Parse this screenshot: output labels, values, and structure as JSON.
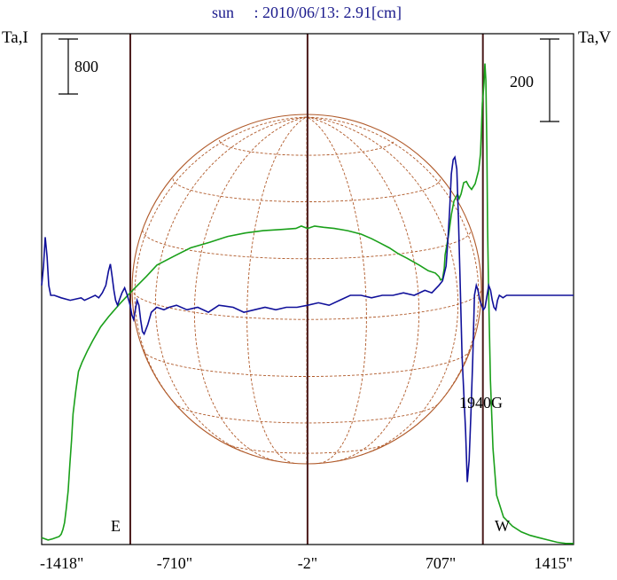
{
  "title": "sun     : 2010/06/13: 2.91[cm]",
  "colors": {
    "title": "#1a1a8c",
    "frame": "#000000",
    "intensity": "#1aa01a",
    "polarization": "#10109a",
    "disk": "#b05a2a",
    "guide": "#4a1a1a"
  },
  "chart_data": {
    "type": "line",
    "title": "sun     : 2010/06/13: 2.91[cm]",
    "left_axis_label": "Ta,I",
    "right_axis_label": "Ta,V",
    "left_scale_bar_label": "800",
    "right_scale_bar_label": "200",
    "left_scale_bar": 800,
    "right_scale_bar": 200,
    "xlim": [
      -1418,
      1415
    ],
    "x_tick_labels": [
      "-1418\"",
      "-710\"",
      "-2\"",
      "707\"",
      "1415\""
    ],
    "x_ticks": [
      -1418,
      -710,
      -2,
      707,
      1415
    ],
    "vertical_markers": [
      -946,
      -2,
      932
    ],
    "labels": {
      "east": "E",
      "west": "W",
      "peak": "1940G"
    },
    "peak_value_G": 1940,
    "series": [
      {
        "key": "intensity",
        "x": [
          -1418,
          -1384,
          -1360,
          -1325,
          -1314,
          -1305,
          -1296,
          -1287,
          -1277,
          -1268,
          -1259,
          -1251,
          -1236,
          -1222,
          -1203,
          -1175,
          -1146,
          -1104,
          -1061,
          -1003,
          -946,
          -861,
          -804,
          -710,
          -625,
          -522,
          -427,
          -333,
          -238,
          -144,
          -64,
          -35,
          -2,
          36,
          84,
          141,
          212,
          283,
          340,
          387,
          434,
          480,
          527,
          593,
          641,
          679,
          698,
          707,
          717,
          726,
          731,
          750,
          764,
          778,
          797,
          806,
          816,
          830,
          844,
          857,
          872,
          891,
          910,
          919,
          924,
          929,
          938,
          943,
          948,
          953,
          957,
          962,
          972,
          986,
          1005,
          1042,
          1090,
          1137,
          1184,
          1231,
          1279,
          1326,
          1373,
          1415
        ],
        "y": [
          -17,
          -50,
          -33,
          0,
          33,
          100,
          200,
          400,
          667,
          1050,
          1400,
          1783,
          2117,
          2400,
          2533,
          2700,
          2850,
          3050,
          3200,
          3383,
          3550,
          3783,
          3950,
          4083,
          4200,
          4283,
          4367,
          4417,
          4450,
          4467,
          4483,
          4517,
          4483,
          4517,
          4500,
          4483,
          4450,
          4400,
          4333,
          4267,
          4200,
          4117,
          4050,
          3950,
          3867,
          3833,
          3783,
          3733,
          3750,
          3900,
          4100,
          4400,
          4683,
          4883,
          4983,
          4917,
          4983,
          5150,
          5167,
          5100,
          5050,
          5133,
          5333,
          5567,
          5900,
          6300,
          6600,
          6883,
          6633,
          5667,
          4500,
          3617,
          2283,
          1283,
          600,
          283,
          150,
          67,
          17,
          -17,
          -50,
          -83,
          -100,
          -100
        ]
      },
      {
        "key": "polarization",
        "x": [
          -1418,
          -1408,
          -1399,
          -1389,
          -1380,
          -1370,
          -1351,
          -1314,
          -1266,
          -1208,
          -1190,
          -1161,
          -1133,
          -1114,
          -1095,
          -1076,
          -1062,
          -1052,
          -1043,
          -1033,
          -1024,
          -1014,
          -1005,
          -990,
          -976,
          -962,
          -947,
          -938,
          -928,
          -919,
          -910,
          -900,
          -891,
          -881,
          -872,
          -853,
          -834,
          -805,
          -767,
          -739,
          -700,
          -644,
          -587,
          -530,
          -474,
          -398,
          -341,
          -285,
          -228,
          -171,
          -115,
          -58,
          -1,
          56,
          113,
          169,
          226,
          283,
          339,
          396,
          453,
          509,
          566,
          623,
          660,
          698,
          717,
          736,
          745,
          755,
          764,
          774,
          783,
          793,
          802,
          812,
          821,
          840,
          849,
          859,
          868,
          878,
          887,
          897,
          906,
          916,
          925,
          935,
          944,
          954,
          963,
          973,
          982,
          991,
          1001,
          1010,
          1020,
          1039,
          1058,
          1077,
          1105,
          1143,
          1190,
          1246,
          1303,
          1360,
          1415
        ],
        "y": [
          24,
          71,
          141,
          94,
          24,
          0,
          0,
          -6,
          -12,
          -6,
          -12,
          -6,
          0,
          -6,
          6,
          24,
          59,
          76,
          47,
          12,
          -12,
          -24,
          -12,
          6,
          18,
          0,
          -24,
          -47,
          -59,
          -35,
          -12,
          -24,
          -59,
          -88,
          -94,
          -71,
          -41,
          -29,
          -35,
          -29,
          -24,
          -35,
          -29,
          -41,
          -24,
          -29,
          -41,
          -35,
          -29,
          -35,
          -29,
          -29,
          -24,
          -18,
          -24,
          -12,
          0,
          0,
          -6,
          0,
          0,
          6,
          0,
          12,
          6,
          24,
          35,
          71,
          129,
          206,
          294,
          329,
          335,
          306,
          182,
          12,
          -147,
          -329,
          -453,
          -400,
          -288,
          -153,
          0,
          24,
          12,
          -12,
          -24,
          -35,
          -29,
          0,
          24,
          12,
          -12,
          -29,
          -35,
          -12,
          0,
          -6,
          0,
          0,
          0,
          0,
          0,
          0,
          0,
          0,
          0
        ]
      }
    ]
  }
}
